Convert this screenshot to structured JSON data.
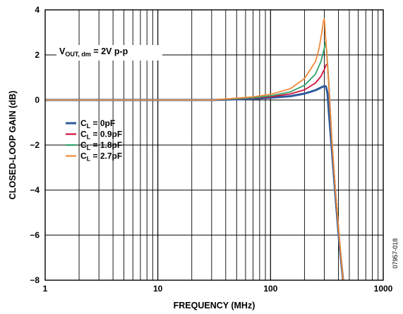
{
  "chart_data": {
    "type": "line",
    "xscale": "log",
    "xlim": [
      1,
      1000
    ],
    "ylim": [
      -8,
      4
    ],
    "grid": true,
    "xlabel": "FREQUENCY (MHz)",
    "ylabel": "CLOSED-LOOP GAIN (dB)",
    "xticks": [
      1,
      10,
      100,
      1000
    ],
    "xtick_labels": [
      "1",
      "10",
      "100",
      "1000"
    ],
    "yticks": [
      4,
      2,
      0,
      -2,
      -4,
      -6,
      -8
    ],
    "ytick_labels": [
      "4",
      "2",
      "0",
      "−2",
      "−4",
      "−6",
      "−8"
    ],
    "annotation": {
      "main": "V",
      "sub": "OUT, dm",
      "rest": " = 2V p-p"
    },
    "figure_code": "07957-018",
    "legend_placement": "center-left",
    "series": [
      {
        "label_main": "C",
        "label_sub": "L",
        "label_rest": " = 0pF",
        "color": "#2e5a9e",
        "x": [
          1,
          10,
          20,
          30,
          50,
          70,
          100,
          150,
          200,
          250,
          280,
          300,
          310,
          320,
          330,
          350,
          380,
          410,
          440
        ],
        "y": [
          0,
          0,
          0,
          0,
          0.03,
          0.05,
          0.1,
          0.17,
          0.28,
          0.43,
          0.55,
          0.62,
          0.6,
          0.3,
          -0.6,
          -2.2,
          -4.5,
          -6.5,
          -8
        ]
      },
      {
        "label_main": "C",
        "label_sub": "L",
        "label_rest": " = 0.9pF",
        "color": "#d0103a",
        "x": [
          1,
          10,
          20,
          30,
          50,
          70,
          100,
          150,
          200,
          250,
          280,
          300,
          310,
          320,
          330,
          350,
          380,
          410,
          440
        ],
        "y": [
          0,
          0,
          0,
          0,
          0.05,
          0.08,
          0.14,
          0.27,
          0.45,
          0.75,
          1.05,
          1.35,
          1.55,
          1.6,
          0.6,
          -1.8,
          -4.3,
          -6.3,
          -8
        ]
      },
      {
        "label_main": "C",
        "label_sub": "L",
        "label_rest": " = 1.8pF",
        "color": "#2ea36a",
        "x": [
          1,
          10,
          20,
          30,
          50,
          70,
          100,
          150,
          200,
          250,
          280,
          300,
          305,
          315,
          330,
          350,
          380,
          410,
          440
        ],
        "y": [
          0,
          0,
          0,
          0,
          0.06,
          0.1,
          0.18,
          0.36,
          0.65,
          1.15,
          1.7,
          2.3,
          2.55,
          2.2,
          0.6,
          -1.8,
          -4.3,
          -6.3,
          -8
        ]
      },
      {
        "label_main": "C",
        "label_sub": "L",
        "label_rest": " = 2.7pF",
        "color": "#f08a3c",
        "x": [
          1,
          10,
          20,
          30,
          50,
          70,
          100,
          150,
          200,
          250,
          270,
          285,
          295,
          300,
          310,
          330,
          350,
          380,
          410,
          440
        ],
        "y": [
          0,
          0,
          0,
          0,
          0.08,
          0.14,
          0.25,
          0.5,
          0.95,
          1.7,
          2.3,
          3.0,
          3.5,
          3.6,
          2.6,
          0.5,
          -1.8,
          -4.3,
          -6.3,
          -8
        ]
      }
    ]
  }
}
